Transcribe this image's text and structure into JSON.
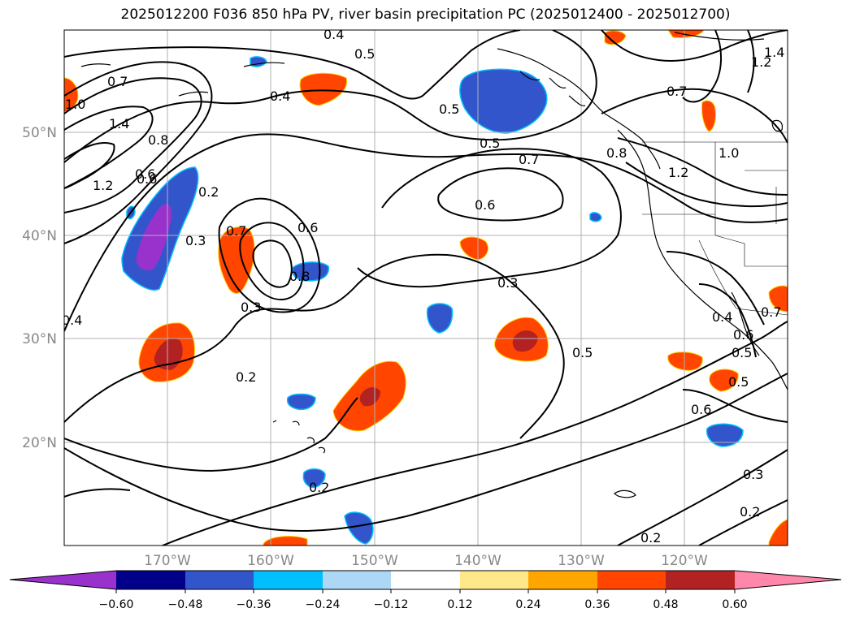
{
  "title": "2025012200 F036 850 hPa PV, river basin precipitation PC (2025012400 - 2025012700)",
  "lat_labels": [
    "50°N",
    "40°N",
    "30°N",
    "20°N"
  ],
  "lon_labels": [
    "170°W",
    "160°W",
    "150°W",
    "140°W",
    "130°W",
    "120°W"
  ],
  "contour_labels": [
    "0.7",
    "1.0",
    "1.4",
    "1.2",
    "0.8",
    "0.6",
    "0.2",
    "0.3",
    "0.4",
    "0.6",
    "0.8",
    "0.7",
    "0.3",
    "0.5",
    "0.4",
    "0.5",
    "0.5",
    "0.5",
    "0.7",
    "0.6",
    "0.3",
    "0.2",
    "0.5",
    "0.2",
    "0.6",
    "0.8",
    "0.7",
    "1.2",
    "1.0",
    "1.2",
    "1.4",
    "0.7",
    "0.4",
    "0.6",
    "0.5",
    "0.6",
    "0.3",
    "0.2",
    "0.2",
    "0.4"
  ],
  "colorbar": {
    "ticks": [
      "−0.60",
      "−0.48",
      "−0.36",
      "−0.24",
      "−0.12",
      "0.12",
      "0.24",
      "0.36",
      "0.48",
      "0.60"
    ],
    "colors": [
      "#9932cc",
      "#00008b",
      "#3355cc",
      "#00bfff",
      "#add8f5",
      "#ffffff",
      "#ffe88a",
      "#ffa500",
      "#ff4500",
      "#b22222",
      "#ff88aa"
    ]
  }
}
